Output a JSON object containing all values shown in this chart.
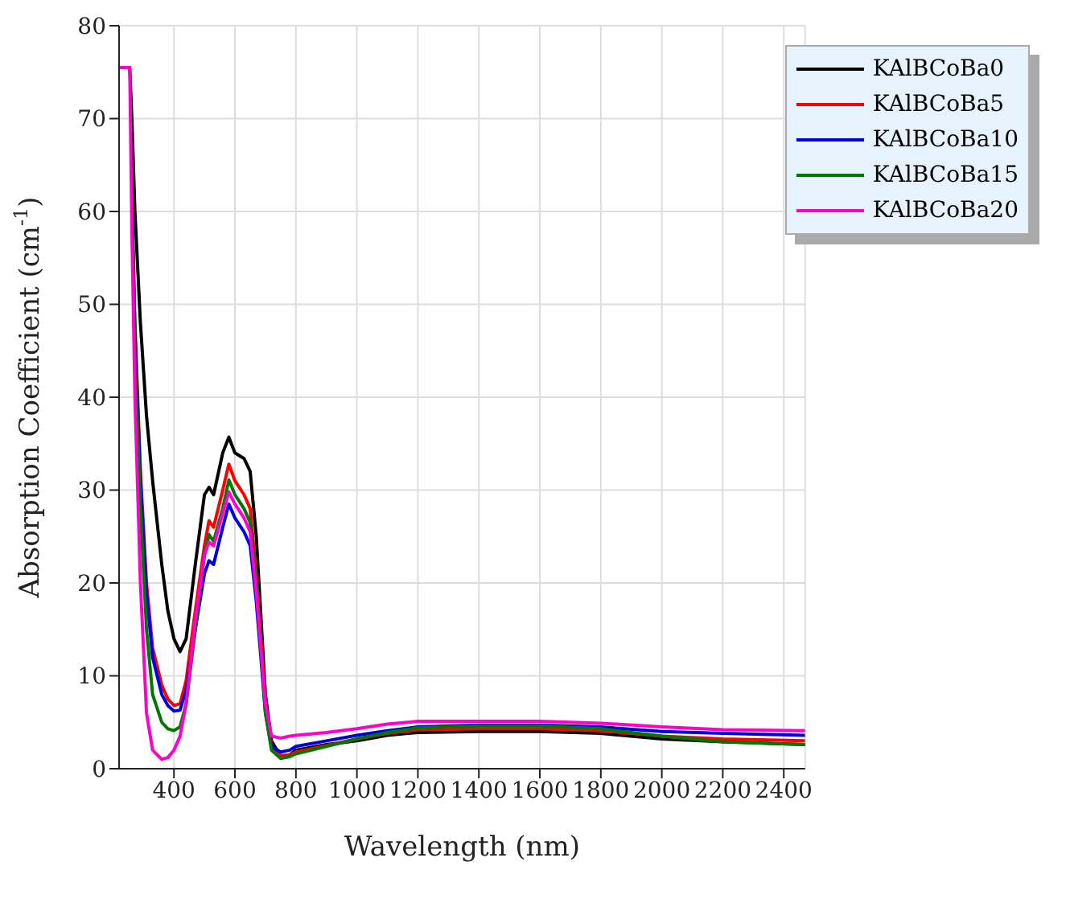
{
  "chart_data": {
    "type": "line",
    "xlabel": "Wavelength (nm)",
    "ylabel": "Absorption Coefficient (cm$^{-1}$)",
    "x": [
      220,
      255,
      262,
      272,
      290,
      310,
      330,
      360,
      380,
      400,
      420,
      440,
      470,
      500,
      515,
      530,
      560,
      580,
      600,
      630,
      650,
      670,
      700,
      720,
      750,
      780,
      800,
      900,
      1000,
      1100,
      1200,
      1400,
      1600,
      1800,
      2000,
      2200,
      2470
    ],
    "series": [
      {
        "name": "KAlBCoBa0",
        "color": "#000000",
        "values": [
          75.5,
          75.5,
          70,
          60,
          48,
          38,
          31,
          22,
          17,
          14,
          12.6,
          14,
          22,
          29.5,
          30.3,
          29.5,
          34,
          35.7,
          34,
          33.4,
          32,
          25,
          8,
          3,
          1.3,
          1.5,
          2,
          2.6,
          3,
          3.6,
          3.9,
          4.0,
          4.0,
          3.8,
          3.2,
          2.9,
          2.6
        ]
      },
      {
        "name": "KAlBCoBa5",
        "color": "#ff0000",
        "values": [
          null,
          null,
          62,
          48,
          32,
          20,
          13,
          9,
          7.5,
          6.8,
          7,
          9.5,
          17,
          24,
          26.7,
          26,
          30,
          32.8,
          31,
          29.5,
          28,
          21,
          7,
          2.5,
          1.4,
          1.5,
          1.8,
          2.5,
          3.2,
          3.8,
          4.2,
          4.3,
          4.3,
          4.1,
          3.5,
          3.2,
          3.0
        ]
      },
      {
        "name": "KAlBCoBa10",
        "color": "#0000dd",
        "values": [
          null,
          null,
          61,
          47,
          31,
          19,
          12,
          8,
          6.8,
          6.2,
          6.3,
          8.5,
          15,
          21,
          22.4,
          22,
          26,
          28.5,
          27,
          25.5,
          24,
          18,
          6,
          2.4,
          1.8,
          2,
          2.4,
          3,
          3.6,
          4.1,
          4.5,
          4.7,
          4.7,
          4.5,
          4,
          3.8,
          3.6
        ]
      },
      {
        "name": "KAlBCoBa15",
        "color": "#007700",
        "values": [
          null,
          null,
          60,
          45,
          28,
          15,
          8,
          5,
          4.3,
          4.1,
          4.5,
          7,
          15,
          23,
          25.2,
          24.5,
          28,
          31.1,
          29.5,
          28,
          26.5,
          20,
          6,
          2,
          1.1,
          1.3,
          1.6,
          2.4,
          3.2,
          3.9,
          4.4,
          4.6,
          4.6,
          4.3,
          3.5,
          2.9,
          2.6
        ]
      },
      {
        "name": "KAlBCoBa20",
        "color": "#ff00cc",
        "values": [
          75.5,
          75.5,
          58,
          40,
          20,
          6,
          2,
          1,
          1.2,
          2,
          3.5,
          7,
          16,
          23,
          24.4,
          24,
          27.5,
          29.8,
          28.5,
          27,
          25.5,
          19,
          7,
          3.5,
          3.3,
          3.5,
          3.6,
          3.9,
          4.3,
          4.8,
          5.1,
          5.1,
          5.1,
          4.9,
          4.5,
          4.2,
          4.1
        ]
      }
    ],
    "xlim": [
      220,
      2470
    ],
    "xticks": [
      400,
      600,
      800,
      1000,
      1200,
      1400,
      1600,
      1800,
      2000,
      2200,
      2400
    ],
    "ylim": [
      0,
      80
    ],
    "yticks": [
      0,
      10,
      20,
      30,
      40,
      50,
      60,
      70,
      80
    ],
    "grid": true,
    "legend": "top right",
    "marker": "none",
    "line_style": "solid"
  }
}
